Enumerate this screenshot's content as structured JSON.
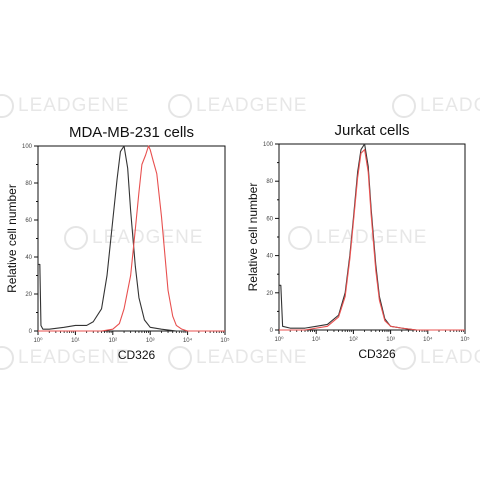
{
  "watermark": "LEADGENE",
  "colors": {
    "control": "#333333",
    "stained": "#e8504f",
    "axis": "#111111"
  },
  "chart_data": [
    {
      "type": "line",
      "title": "MDA-MB-231 cells",
      "xlabel": "CD326",
      "ylabel": "Relative cell number",
      "xscale": "log",
      "xlim": [
        1,
        100000
      ],
      "ylim": [
        0,
        100
      ],
      "xticks": [
        "10⁰",
        "10¹",
        "10²",
        "10³",
        "10⁴",
        "10⁵"
      ],
      "yticks": [
        "0",
        "20",
        "40",
        "60",
        "80",
        "100"
      ],
      "grid": false,
      "series": [
        {
          "color": "#333333",
          "x": [
            1,
            1.12,
            1.2,
            1.35,
            2,
            5,
            10,
            20,
            30,
            50,
            70,
            100,
            130,
            160,
            200,
            250,
            300,
            400,
            500,
            700,
            1000,
            2000,
            5000,
            100000
          ],
          "y": [
            36,
            36,
            3,
            1,
            1,
            2,
            3,
            3,
            5,
            12,
            30,
            60,
            82,
            97,
            100,
            88,
            65,
            35,
            18,
            6,
            2,
            1,
            0,
            0
          ]
        },
        {
          "color": "#e8504f",
          "x": [
            1,
            10,
            50,
            100,
            150,
            200,
            300,
            400,
            500,
            600,
            750,
            900,
            1000,
            1200,
            1500,
            2000,
            2500,
            3000,
            4000,
            5000,
            7000,
            10000,
            100000
          ],
          "y": [
            0,
            0,
            0,
            1,
            4,
            12,
            30,
            55,
            75,
            90,
            95,
            100,
            98,
            92,
            85,
            62,
            40,
            22,
            8,
            3,
            1,
            0,
            0
          ]
        }
      ]
    },
    {
      "type": "line",
      "title": "Jurkat cells",
      "xlabel": "CD326",
      "ylabel": "Relative cell number",
      "xscale": "log",
      "xlim": [
        1,
        100000
      ],
      "ylim": [
        0,
        100
      ],
      "xticks": [
        "10⁰",
        "10¹",
        "10²",
        "10³",
        "10⁴",
        "10⁵"
      ],
      "yticks": [
        "0",
        "20",
        "40",
        "60",
        "80",
        "100"
      ],
      "grid": false,
      "series": [
        {
          "color": "#333333",
          "x": [
            1,
            1.12,
            1.25,
            2,
            5,
            10,
            20,
            40,
            60,
            80,
            100,
            130,
            160,
            200,
            250,
            300,
            400,
            500,
            700,
            1000,
            2000,
            5000,
            100000
          ],
          "y": [
            24,
            24,
            2,
            1,
            1,
            2,
            3,
            8,
            20,
            40,
            60,
            85,
            97,
            100,
            88,
            65,
            35,
            18,
            6,
            2,
            1,
            0,
            0
          ]
        },
        {
          "color": "#e8504f",
          "x": [
            1,
            5,
            10,
            20,
            40,
            60,
            80,
            100,
            130,
            160,
            200,
            250,
            300,
            400,
            500,
            700,
            1000,
            2000,
            5000,
            100000
          ],
          "y": [
            0,
            0,
            1,
            2,
            7,
            18,
            38,
            58,
            82,
            95,
            97,
            85,
            62,
            32,
            16,
            5,
            2,
            1,
            0,
            0
          ]
        }
      ]
    }
  ]
}
